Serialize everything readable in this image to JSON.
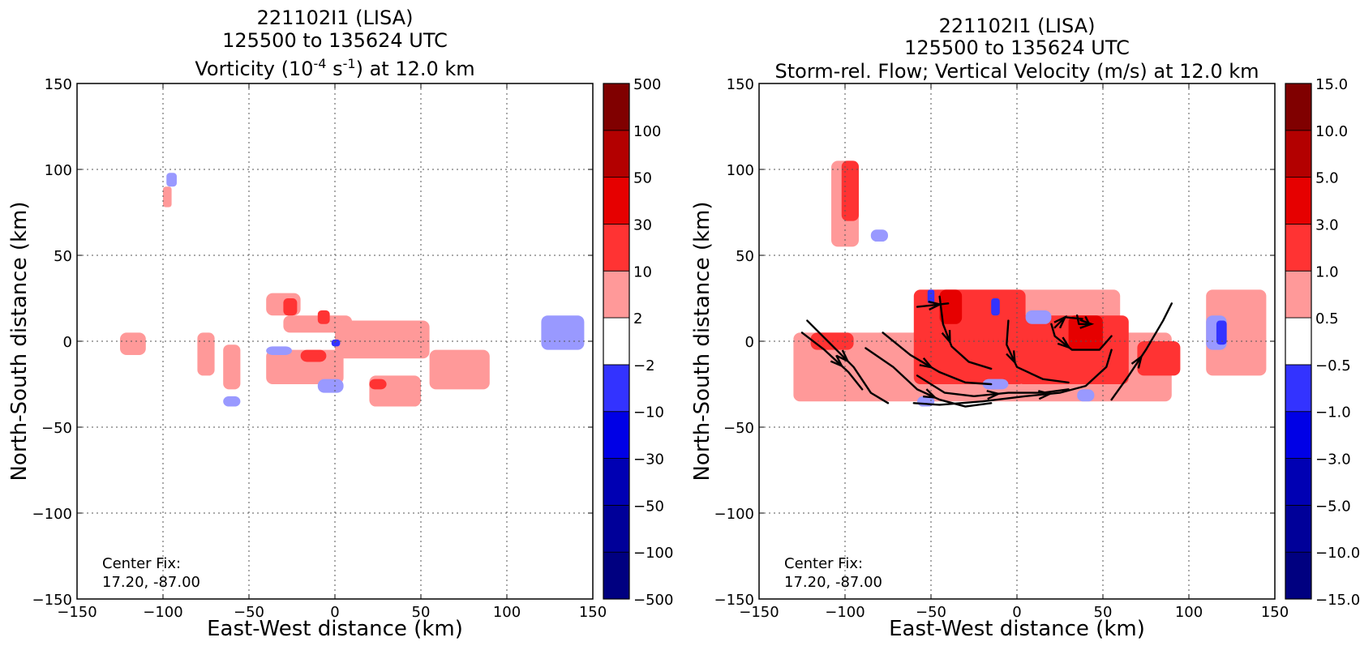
{
  "colors": {
    "levels": [
      "#000080",
      "#000099",
      "#0000b3",
      "#0000e6",
      "#3333ff",
      "#9999ff",
      "#ffffff",
      "#ff9999",
      "#ff3333",
      "#e60000",
      "#b30000",
      "#800000"
    ],
    "flow": "#000000",
    "grid": "#555555"
  },
  "chart_data": [
    {
      "type": "heatmap",
      "title_lines": [
        "221102I1 (LISA)",
        "125500 to 135624 UTC"
      ],
      "title_var": {
        "pre": "Vorticity (10",
        "sup1": "-4",
        "mid": " s",
        "sup2": "-1",
        "post": ") at 12.0 km"
      },
      "xlabel": "East-West distance (km)",
      "ylabel": "North-South distance (km)",
      "xlim": [
        -150,
        150
      ],
      "ylim": [
        -150,
        150
      ],
      "x_ticks": [
        -150,
        -100,
        -50,
        0,
        50,
        100,
        150
      ],
      "y_ticks": [
        -150,
        -100,
        -50,
        0,
        50,
        100,
        150
      ],
      "x_tick_labels": [
        "−150",
        "−100",
        "−50",
        "0",
        "50",
        "100",
        "150"
      ],
      "y_tick_labels": [
        "−150",
        "−100",
        "−50",
        "0",
        "50",
        "100",
        "150"
      ],
      "grid": true,
      "annotation": [
        "Center Fix:",
        "17.20, -87.00"
      ],
      "colorbar_labels": [
        "−500",
        "−100",
        "−50",
        "−30",
        "−10",
        "−2",
        "2",
        "10",
        "30",
        "50",
        "100",
        "500"
      ],
      "field": [
        {
          "level": 7,
          "x": [
            -30,
            10
          ],
          "y": [
            5,
            15
          ]
        },
        {
          "level": 7,
          "x": [
            0,
            55
          ],
          "y": [
            -10,
            12
          ]
        },
        {
          "level": 7,
          "x": [
            55,
            90
          ],
          "y": [
            -28,
            -5
          ]
        },
        {
          "level": 7,
          "x": [
            -40,
            -20
          ],
          "y": [
            15,
            28
          ]
        },
        {
          "level": 7,
          "x": [
            -65,
            -55
          ],
          "y": [
            -28,
            -2
          ]
        },
        {
          "level": 7,
          "x": [
            -80,
            -70
          ],
          "y": [
            -20,
            5
          ]
        },
        {
          "level": 7,
          "x": [
            -40,
            5
          ],
          "y": [
            -25,
            -5
          ]
        },
        {
          "level": 7,
          "x": [
            20,
            50
          ],
          "y": [
            -38,
            -20
          ]
        },
        {
          "level": 7,
          "x": [
            -125,
            -110
          ],
          "y": [
            -8,
            5
          ]
        },
        {
          "level": 7,
          "x": [
            -100,
            -95
          ],
          "y": [
            78,
            90
          ]
        },
        {
          "level": 8,
          "x": [
            -30,
            -22
          ],
          "y": [
            15,
            25
          ]
        },
        {
          "level": 8,
          "x": [
            -20,
            -5
          ],
          "y": [
            -12,
            -5
          ]
        },
        {
          "level": 8,
          "x": [
            20,
            30
          ],
          "y": [
            -28,
            -22
          ]
        },
        {
          "level": 8,
          "x": [
            -10,
            -3
          ],
          "y": [
            10,
            18
          ]
        },
        {
          "level": 5,
          "x": [
            -10,
            5
          ],
          "y": [
            -30,
            -22
          ]
        },
        {
          "level": 5,
          "x": [
            -40,
            -25
          ],
          "y": [
            -8,
            -3
          ]
        },
        {
          "level": 5,
          "x": [
            120,
            145
          ],
          "y": [
            -5,
            15
          ]
        },
        {
          "level": 5,
          "x": [
            -98,
            -92
          ],
          "y": [
            90,
            98
          ]
        },
        {
          "level": 5,
          "x": [
            -65,
            -55
          ],
          "y": [
            -38,
            -32
          ]
        },
        {
          "level": 4,
          "x": [
            -2,
            3
          ],
          "y": [
            -3,
            1
          ]
        }
      ]
    },
    {
      "type": "heatmap",
      "title_lines": [
        "221102I1 (LISA)",
        "125500 to 135624 UTC",
        "Storm-rel. Flow; Vertical Velocity (m/s) at 12.0 km"
      ],
      "xlabel": "East-West distance (km)",
      "ylabel": "North-South distance (km)",
      "xlim": [
        -150,
        150
      ],
      "ylim": [
        -150,
        150
      ],
      "x_ticks": [
        -150,
        -100,
        -50,
        0,
        50,
        100,
        150
      ],
      "y_ticks": [
        -150,
        -100,
        -50,
        0,
        50,
        100,
        150
      ],
      "x_tick_labels": [
        "−150",
        "−100",
        "−50",
        "0",
        "50",
        "100",
        "150"
      ],
      "y_tick_labels": [
        "−150",
        "−100",
        "−50",
        "0",
        "50",
        "100",
        "150"
      ],
      "grid": true,
      "annotation": [
        "Center Fix:",
        "17.20, -87.00"
      ],
      "colorbar_labels": [
        "−15.0",
        "−10.0",
        "−5.0",
        "−3.0",
        "−1.0",
        "−0.5",
        "0.5",
        "1.0",
        "3.0",
        "5.0",
        "10.0",
        "15.0"
      ],
      "field": [
        {
          "level": 7,
          "x": [
            -130,
            90
          ],
          "y": [
            -35,
            5
          ]
        },
        {
          "level": 7,
          "x": [
            -50,
            60
          ],
          "y": [
            5,
            30
          ]
        },
        {
          "level": 7,
          "x": [
            110,
            145
          ],
          "y": [
            -20,
            30
          ]
        },
        {
          "level": 7,
          "x": [
            -108,
            -92
          ],
          "y": [
            55,
            105
          ]
        },
        {
          "level": 8,
          "x": [
            -60,
            5
          ],
          "y": [
            -25,
            30
          ]
        },
        {
          "level": 8,
          "x": [
            0,
            65
          ],
          "y": [
            -25,
            15
          ]
        },
        {
          "level": 8,
          "x": [
            70,
            95
          ],
          "y": [
            -20,
            0
          ]
        },
        {
          "level": 8,
          "x": [
            -120,
            -95
          ],
          "y": [
            -5,
            5
          ]
        },
        {
          "level": 8,
          "x": [
            -102,
            -92
          ],
          "y": [
            70,
            105
          ]
        },
        {
          "level": 9,
          "x": [
            -45,
            -32
          ],
          "y": [
            10,
            30
          ]
        },
        {
          "level": 9,
          "x": [
            30,
            50
          ],
          "y": [
            -5,
            15
          ]
        },
        {
          "level": 5,
          "x": [
            -20,
            -5
          ],
          "y": [
            -28,
            -22
          ]
        },
        {
          "level": 5,
          "x": [
            -58,
            -48
          ],
          "y": [
            -38,
            -32
          ]
        },
        {
          "level": 5,
          "x": [
            5,
            20
          ],
          "y": [
            10,
            18
          ]
        },
        {
          "level": 5,
          "x": [
            110,
            122
          ],
          "y": [
            -5,
            15
          ]
        },
        {
          "level": 5,
          "x": [
            -85,
            -75
          ],
          "y": [
            58,
            65
          ]
        },
        {
          "level": 5,
          "x": [
            35,
            45
          ],
          "y": [
            -35,
            -28
          ]
        },
        {
          "level": 4,
          "x": [
            -15,
            -10
          ],
          "y": [
            15,
            25
          ]
        },
        {
          "level": 4,
          "x": [
            116,
            122
          ],
          "y": [
            -2,
            12
          ]
        },
        {
          "level": 4,
          "x": [
            -52,
            -48
          ],
          "y": [
            22,
            30
          ]
        }
      ],
      "streamlines": [
        [
          [
            -122,
            12
          ],
          [
            -108,
            -2
          ],
          [
            -95,
            -15
          ],
          [
            -85,
            -30
          ],
          [
            -75,
            -36
          ]
        ],
        [
          [
            -125,
            5
          ],
          [
            -112,
            -5
          ],
          [
            -98,
            -18
          ],
          [
            -90,
            -28
          ]
        ],
        [
          [
            -88,
            -4
          ],
          [
            -72,
            -15
          ],
          [
            -58,
            -28
          ],
          [
            -45,
            -34
          ],
          [
            -30,
            -38
          ],
          [
            -15,
            -36
          ]
        ],
        [
          [
            -78,
            5
          ],
          [
            -62,
            -8
          ],
          [
            -45,
            -18
          ],
          [
            -30,
            -24
          ],
          [
            -15,
            -25
          ]
        ],
        [
          [
            -45,
            26
          ],
          [
            -43,
            10
          ],
          [
            -38,
            -3
          ],
          [
            -28,
            -12
          ],
          [
            -15,
            -16
          ]
        ],
        [
          [
            -58,
            -20
          ],
          [
            -42,
            -30
          ],
          [
            -25,
            -32
          ],
          [
            -5,
            -30
          ],
          [
            15,
            -30
          ],
          [
            30,
            -28
          ]
        ],
        [
          [
            -5,
            12
          ],
          [
            -6,
            -2
          ],
          [
            0,
            -15
          ],
          [
            15,
            -22
          ],
          [
            30,
            -24
          ]
        ],
        [
          [
            -60,
            -36
          ],
          [
            -45,
            -37
          ],
          [
            -20,
            -35
          ],
          [
            5,
            -32
          ],
          [
            25,
            -30
          ],
          [
            40,
            -26
          ],
          [
            52,
            -15
          ],
          [
            55,
            -5
          ]
        ],
        [
          [
            -58,
            20
          ],
          [
            -40,
            22
          ]
        ],
        [
          [
            20,
            10
          ],
          [
            22,
            3
          ],
          [
            32,
            -5
          ],
          [
            48,
            -5
          ],
          [
            55,
            3
          ]
        ],
        [
          [
            35,
            15
          ],
          [
            36,
            10
          ],
          [
            42,
            10
          ],
          [
            40,
            14
          ]
        ],
        [
          [
            22,
            8
          ],
          [
            28,
            14
          ],
          [
            38,
            13
          ]
        ],
        [
          [
            55,
            -34
          ],
          [
            65,
            -20
          ],
          [
            75,
            -5
          ],
          [
            85,
            12
          ],
          [
            90,
            22
          ]
        ]
      ]
    }
  ]
}
